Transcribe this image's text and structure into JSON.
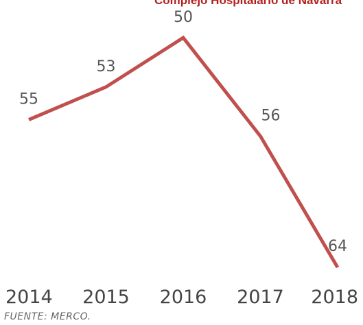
{
  "chart_data": {
    "type": "line",
    "title": "Complejo Hospitalario de Navarra",
    "categories": [
      "2014",
      "2015",
      "2016",
      "2017",
      "2018"
    ],
    "series": [
      {
        "values": [
          55,
          53,
          50,
          56,
          64
        ]
      }
    ],
    "y_inverted": true,
    "grid": false,
    "line_color": "#c0504d",
    "source": "FUENTE: MERCO."
  }
}
